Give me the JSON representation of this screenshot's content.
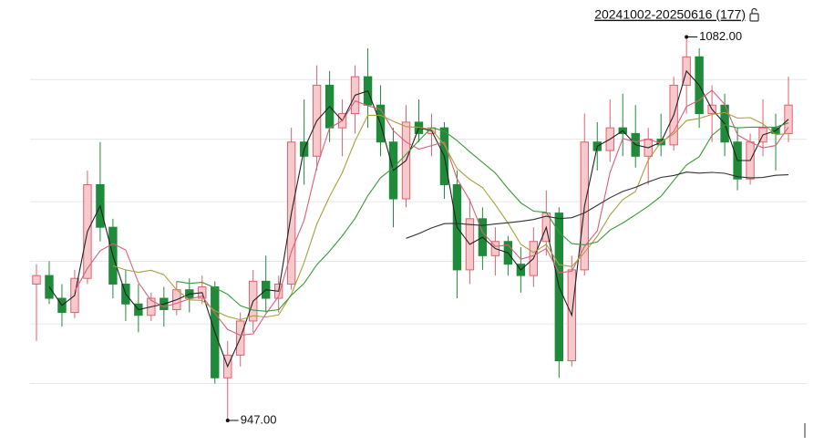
{
  "chart_data": {
    "type": "candlestick",
    "title": "20241002-20250616 (177)",
    "ylim": [
      938,
      1095
    ],
    "grid_lines": [
      960,
      981,
      1003,
      1024,
      1046,
      1067
    ],
    "up_color": "#e0606a",
    "down_color": "#1f8a3a",
    "ohlc": [
      [
        995,
        1002,
        975,
        998
      ],
      [
        998,
        1003,
        988,
        990
      ],
      [
        990,
        995,
        980,
        985
      ],
      [
        985,
        1000,
        983,
        997
      ],
      [
        997,
        1035,
        995,
        1030
      ],
      [
        1030,
        1045,
        1010,
        1015
      ],
      [
        1015,
        1018,
        990,
        995
      ],
      [
        995,
        1000,
        982,
        988
      ],
      [
        988,
        995,
        978,
        984
      ],
      [
        984,
        992,
        982,
        990
      ],
      [
        990,
        994,
        980,
        986
      ],
      [
        986,
        996,
        984,
        993
      ],
      [
        993,
        997,
        985,
        990
      ],
      [
        990,
        998,
        988,
        994
      ],
      [
        994,
        996,
        960,
        962
      ],
      [
        962,
        975,
        947,
        970
      ],
      [
        970,
        985,
        966,
        982
      ],
      [
        982,
        1000,
        978,
        996
      ],
      [
        996,
        1005,
        985,
        990
      ],
      [
        990,
        998,
        985,
        995
      ],
      [
        995,
        1050,
        993,
        1045
      ],
      [
        1045,
        1060,
        1030,
        1040
      ],
      [
        1040,
        1072,
        1035,
        1065
      ],
      [
        1065,
        1070,
        1045,
        1050
      ],
      [
        1050,
        1060,
        1040,
        1055
      ],
      [
        1055,
        1072,
        1048,
        1068
      ],
      [
        1068,
        1078,
        1050,
        1058
      ],
      [
        1058,
        1065,
        1040,
        1045
      ],
      [
        1045,
        1050,
        1015,
        1025
      ],
      [
        1025,
        1058,
        1022,
        1052
      ],
      [
        1052,
        1060,
        1045,
        1048
      ],
      [
        1048,
        1055,
        1040,
        1050
      ],
      [
        1050,
        1052,
        1025,
        1030
      ],
      [
        1030,
        1035,
        990,
        1000
      ],
      [
        1000,
        1025,
        995,
        1018
      ],
      [
        1018,
        1022,
        1000,
        1005
      ],
      [
        1005,
        1015,
        998,
        1010
      ],
      [
        1010,
        1012,
        998,
        1002
      ],
      [
        1002,
        1008,
        992,
        998
      ],
      [
        998,
        1015,
        994,
        1010
      ],
      [
        1010,
        1028,
        1005,
        1020
      ],
      [
        1020,
        1022,
        962,
        968
      ],
      [
        968,
        1005,
        966,
        1000
      ],
      [
        1000,
        1055,
        998,
        1045
      ],
      [
        1045,
        1052,
        1035,
        1042
      ],
      [
        1042,
        1060,
        1038,
        1050
      ],
      [
        1050,
        1062,
        1040,
        1048
      ],
      [
        1048,
        1058,
        1036,
        1040
      ],
      [
        1040,
        1050,
        1030,
        1046
      ],
      [
        1046,
        1055,
        1040,
        1044
      ],
      [
        1044,
        1068,
        1042,
        1065
      ],
      [
        1065,
        1082,
        1055,
        1075
      ],
      [
        1075,
        1078,
        1050,
        1055
      ],
      [
        1055,
        1065,
        1045,
        1058
      ],
      [
        1058,
        1062,
        1040,
        1045
      ],
      [
        1045,
        1050,
        1028,
        1032
      ],
      [
        1032,
        1048,
        1030,
        1045
      ],
      [
        1045,
        1060,
        1040,
        1050
      ],
      [
        1050,
        1055,
        1035,
        1048
      ],
      [
        1048,
        1068,
        1045,
        1058
      ]
    ],
    "moving_averages": [
      {
        "period": 2,
        "color": "#222222"
      },
      {
        "period": 4,
        "color": "#d9607a"
      },
      {
        "period": 7,
        "color": "#a8a040"
      },
      {
        "period": 12,
        "color": "#3a9a3a"
      },
      {
        "period": 30,
        "color": "#333333"
      }
    ],
    "annotations": [
      {
        "value": 1082,
        "label": "1082.00"
      },
      {
        "value": 947,
        "label": "947.00"
      }
    ]
  }
}
